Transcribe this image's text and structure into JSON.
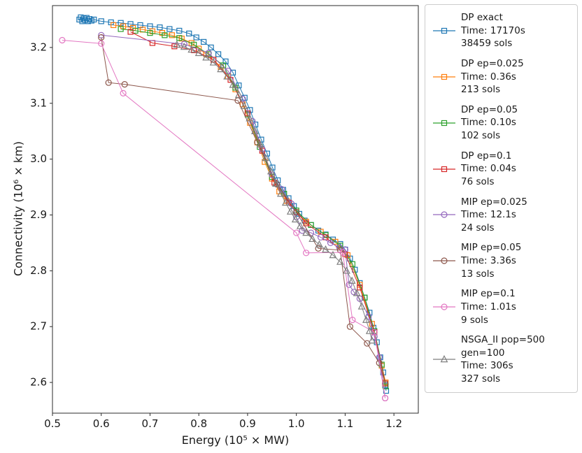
{
  "chart_data": {
    "type": "scatter",
    "title": "",
    "xlabel": "Energy (10⁵ × MW)",
    "ylabel": "Connectivity (10⁶ × km)",
    "xlim": [
      0.5,
      1.25
    ],
    "ylim": [
      2.545,
      3.275
    ],
    "x_ticks": [
      "0.5",
      "0.6",
      "0.7",
      "0.8",
      "0.9",
      "1.0",
      "1.1",
      "1.2"
    ],
    "y_ticks": [
      "2.6",
      "2.7",
      "2.8",
      "2.9",
      "3.0",
      "3.1",
      "3.2"
    ],
    "grid": false,
    "legend_position": "outside-right",
    "series": [
      {
        "id": "dp-exact",
        "label": "DP exact",
        "time": "17170s",
        "sols": "38459 sols",
        "color": "#1f77b4",
        "marker": "square",
        "legend_lines": [
          "DP exact",
          "Time: 17170s",
          "38459 sols"
        ],
        "points": [
          [
            0.555,
            3.25
          ],
          [
            0.558,
            3.254
          ],
          [
            0.561,
            3.247
          ],
          [
            0.564,
            3.252
          ],
          [
            0.567,
            3.249
          ],
          [
            0.57,
            3.253
          ],
          [
            0.573,
            3.247
          ],
          [
            0.576,
            3.251
          ],
          [
            0.58,
            3.248
          ],
          [
            0.585,
            3.25
          ],
          [
            0.6,
            3.247
          ],
          [
            0.62,
            3.245
          ],
          [
            0.64,
            3.244
          ],
          [
            0.66,
            3.242
          ],
          [
            0.68,
            3.24
          ],
          [
            0.7,
            3.238
          ],
          [
            0.72,
            3.236
          ],
          [
            0.74,
            3.233
          ],
          [
            0.76,
            3.23
          ],
          [
            0.78,
            3.225
          ],
          [
            0.795,
            3.218
          ],
          [
            0.81,
            3.21
          ],
          [
            0.825,
            3.2
          ],
          [
            0.84,
            3.188
          ],
          [
            0.855,
            3.175
          ],
          [
            0.87,
            3.155
          ],
          [
            0.882,
            3.132
          ],
          [
            0.894,
            3.11
          ],
          [
            0.905,
            3.088
          ],
          [
            0.916,
            3.062
          ],
          [
            0.928,
            3.035
          ],
          [
            0.94,
            3.01
          ],
          [
            0.951,
            2.985
          ],
          [
            0.962,
            2.962
          ],
          [
            0.973,
            2.945
          ],
          [
            0.984,
            2.93
          ],
          [
            0.995,
            2.916
          ],
          [
            1.006,
            2.902
          ],
          [
            1.017,
            2.89
          ],
          [
            1.03,
            2.882
          ],
          [
            1.045,
            2.872
          ],
          [
            1.06,
            2.865
          ],
          [
            1.075,
            2.856
          ],
          [
            1.09,
            2.848
          ],
          [
            1.1,
            2.838
          ],
          [
            1.11,
            2.822
          ],
          [
            1.12,
            2.802
          ],
          [
            1.13,
            2.778
          ],
          [
            1.14,
            2.752
          ],
          [
            1.15,
            2.725
          ],
          [
            1.158,
            2.698
          ],
          [
            1.165,
            2.672
          ],
          [
            1.172,
            2.645
          ],
          [
            1.178,
            2.618
          ],
          [
            1.182,
            2.595
          ],
          [
            1.184,
            2.585
          ]
        ]
      },
      {
        "id": "dp-ep-0025",
        "label": "DP ep=0.025",
        "time": "0.36s",
        "sols": "213 sols",
        "color": "#ff7f0e",
        "marker": "square",
        "legend_lines": [
          "DP ep=0.025",
          "Time: 0.36s",
          "213 sols"
        ],
        "points": [
          [
            0.625,
            3.24
          ],
          [
            0.645,
            3.238
          ],
          [
            0.665,
            3.235
          ],
          [
            0.685,
            3.232
          ],
          [
            0.705,
            3.229
          ],
          [
            0.725,
            3.226
          ],
          [
            0.745,
            3.222
          ],
          [
            0.765,
            3.216
          ],
          [
            0.785,
            3.208
          ],
          [
            0.8,
            3.198
          ],
          [
            0.815,
            3.188
          ],
          [
            0.83,
            3.178
          ],
          [
            0.845,
            3.165
          ],
          [
            0.86,
            3.148
          ],
          [
            0.875,
            3.125
          ],
          [
            0.89,
            3.098
          ],
          [
            0.905,
            3.065
          ],
          [
            0.92,
            3.03
          ],
          [
            0.935,
            2.995
          ],
          [
            0.95,
            2.965
          ],
          [
            0.965,
            2.942
          ],
          [
            0.98,
            2.925
          ],
          [
            1.0,
            2.905
          ],
          [
            1.02,
            2.888
          ],
          [
            1.05,
            2.87
          ],
          [
            1.08,
            2.852
          ],
          [
            1.105,
            2.828
          ],
          [
            1.13,
            2.775
          ],
          [
            1.155,
            2.705
          ],
          [
            1.175,
            2.63
          ],
          [
            1.183,
            2.6
          ]
        ]
      },
      {
        "id": "dp-ep-005",
        "label": "DP ep=0.05",
        "time": "0.10s",
        "sols": "102 sols",
        "color": "#2ca02c",
        "marker": "square",
        "legend_lines": [
          "DP ep=0.05",
          "Time: 0.10s",
          "102 sols"
        ],
        "points": [
          [
            0.64,
            3.233
          ],
          [
            0.67,
            3.23
          ],
          [
            0.7,
            3.226
          ],
          [
            0.73,
            3.222
          ],
          [
            0.76,
            3.217
          ],
          [
            0.79,
            3.205
          ],
          [
            0.82,
            3.188
          ],
          [
            0.85,
            3.168
          ],
          [
            0.875,
            3.128
          ],
          [
            0.9,
            3.08
          ],
          [
            0.925,
            3.022
          ],
          [
            0.95,
            2.968
          ],
          [
            0.975,
            2.938
          ],
          [
            1.0,
            2.908
          ],
          [
            1.03,
            2.882
          ],
          [
            1.06,
            2.864
          ],
          [
            1.09,
            2.845
          ],
          [
            1.115,
            2.812
          ],
          [
            1.14,
            2.752
          ],
          [
            1.16,
            2.692
          ],
          [
            1.175,
            2.632
          ],
          [
            1.183,
            2.593
          ]
        ]
      },
      {
        "id": "dp-ep-01",
        "label": "DP ep=0.1",
        "time": "0.04s",
        "sols": "76 sols",
        "color": "#d62728",
        "marker": "square",
        "legend_lines": [
          "DP ep=0.1",
          "Time: 0.04s",
          "76 sols"
        ],
        "points": [
          [
            0.66,
            3.228
          ],
          [
            0.705,
            3.208
          ],
          [
            0.75,
            3.202
          ],
          [
            0.79,
            3.195
          ],
          [
            0.83,
            3.178
          ],
          [
            0.865,
            3.142
          ],
          [
            0.9,
            3.082
          ],
          [
            0.93,
            3.015
          ],
          [
            0.955,
            2.958
          ],
          [
            0.985,
            2.922
          ],
          [
            1.02,
            2.885
          ],
          [
            1.06,
            2.86
          ],
          [
            1.1,
            2.83
          ],
          [
            1.13,
            2.77
          ],
          [
            1.16,
            2.69
          ],
          [
            1.182,
            2.598
          ]
        ]
      },
      {
        "id": "mip-ep-0025",
        "label": "MIP ep=0.025",
        "time": "12.1s",
        "sols": "24 sols",
        "color": "#9467bd",
        "marker": "circle",
        "legend_lines": [
          "MIP ep=0.025",
          "Time: 12.1s",
          "24 sols"
        ],
        "points": [
          [
            0.6,
            3.222
          ],
          [
            0.77,
            3.206
          ],
          [
            0.82,
            3.19
          ],
          [
            0.86,
            3.158
          ],
          [
            0.89,
            3.108
          ],
          [
            0.91,
            3.068
          ],
          [
            0.93,
            3.018
          ],
          [
            0.95,
            2.972
          ],
          [
            0.97,
            2.946
          ],
          [
            0.99,
            2.92
          ],
          [
            1.0,
            2.896
          ],
          [
            1.012,
            2.872
          ],
          [
            1.03,
            2.868
          ],
          [
            1.05,
            2.86
          ],
          [
            1.07,
            2.85
          ],
          [
            1.088,
            2.842
          ],
          [
            1.1,
            2.838
          ],
          [
            1.108,
            2.775
          ],
          [
            1.118,
            2.762
          ],
          [
            1.13,
            2.75
          ],
          [
            1.148,
            2.718
          ],
          [
            1.16,
            2.682
          ],
          [
            1.17,
            2.645
          ],
          [
            1.182,
            2.572
          ]
        ]
      },
      {
        "id": "mip-ep-005",
        "label": "MIP ep=0.05",
        "time": "3.36s",
        "sols": "13 sols",
        "color": "#8c564b",
        "marker": "circle",
        "legend_lines": [
          "MIP ep=0.05",
          "Time: 3.36s",
          "13 sols"
        ],
        "points": [
          [
            0.6,
            3.218
          ],
          [
            0.615,
            3.137
          ],
          [
            0.648,
            3.134
          ],
          [
            0.88,
            3.105
          ],
          [
            0.92,
            3.03
          ],
          [
            0.96,
            2.955
          ],
          [
            1.0,
            2.905
          ],
          [
            1.045,
            2.84
          ],
          [
            1.09,
            2.837
          ],
          [
            1.11,
            2.7
          ],
          [
            1.145,
            2.67
          ],
          [
            1.17,
            2.635
          ],
          [
            1.182,
            2.598
          ]
        ]
      },
      {
        "id": "mip-ep-01",
        "label": "MIP ep=0.1",
        "time": "1.01s",
        "sols": "9 sols",
        "color": "#e377c2",
        "marker": "circle",
        "legend_lines": [
          "MIP ep=0.1",
          "Time: 1.01s",
          "9 sols"
        ],
        "points": [
          [
            0.52,
            3.213
          ],
          [
            0.6,
            3.207
          ],
          [
            0.645,
            3.118
          ],
          [
            1.0,
            2.868
          ],
          [
            1.02,
            2.832
          ],
          [
            1.095,
            2.833
          ],
          [
            1.115,
            2.712
          ],
          [
            1.16,
            2.69
          ],
          [
            1.182,
            2.572
          ]
        ]
      },
      {
        "id": "nsga-ii",
        "label": "NSGA_II pop=500 gen=100",
        "time": "306s",
        "sols": "327 sols",
        "color": "#7f7f7f",
        "marker": "triangle",
        "legend_lines": [
          "NSGA_II pop=500",
          "gen=100",
          "Time: 306s",
          "327 sols"
        ],
        "points": [
          [
            0.755,
            3.205
          ],
          [
            0.77,
            3.201
          ],
          [
            0.785,
            3.196
          ],
          [
            0.8,
            3.19
          ],
          [
            0.815,
            3.182
          ],
          [
            0.83,
            3.173
          ],
          [
            0.845,
            3.161
          ],
          [
            0.858,
            3.148
          ],
          [
            0.87,
            3.133
          ],
          [
            0.882,
            3.115
          ],
          [
            0.893,
            3.095
          ],
          [
            0.904,
            3.073
          ],
          [
            0.915,
            3.05
          ],
          [
            0.926,
            3.026
          ],
          [
            0.937,
            3.002
          ],
          [
            0.948,
            2.978
          ],
          [
            0.958,
            2.956
          ],
          [
            0.968,
            2.938
          ],
          [
            0.978,
            2.922
          ],
          [
            0.988,
            2.906
          ],
          [
            0.998,
            2.892
          ],
          [
            1.008,
            2.88
          ],
          [
            1.02,
            2.868
          ],
          [
            1.033,
            2.857
          ],
          [
            1.047,
            2.847
          ],
          [
            1.06,
            2.838
          ],
          [
            1.075,
            2.828
          ],
          [
            1.09,
            2.816
          ],
          [
            1.103,
            2.8
          ],
          [
            1.114,
            2.782
          ],
          [
            1.124,
            2.76
          ],
          [
            1.134,
            2.736
          ],
          [
            1.143,
            2.712
          ],
          [
            1.15,
            2.692
          ],
          [
            1.155,
            2.675
          ]
        ]
      }
    ]
  }
}
